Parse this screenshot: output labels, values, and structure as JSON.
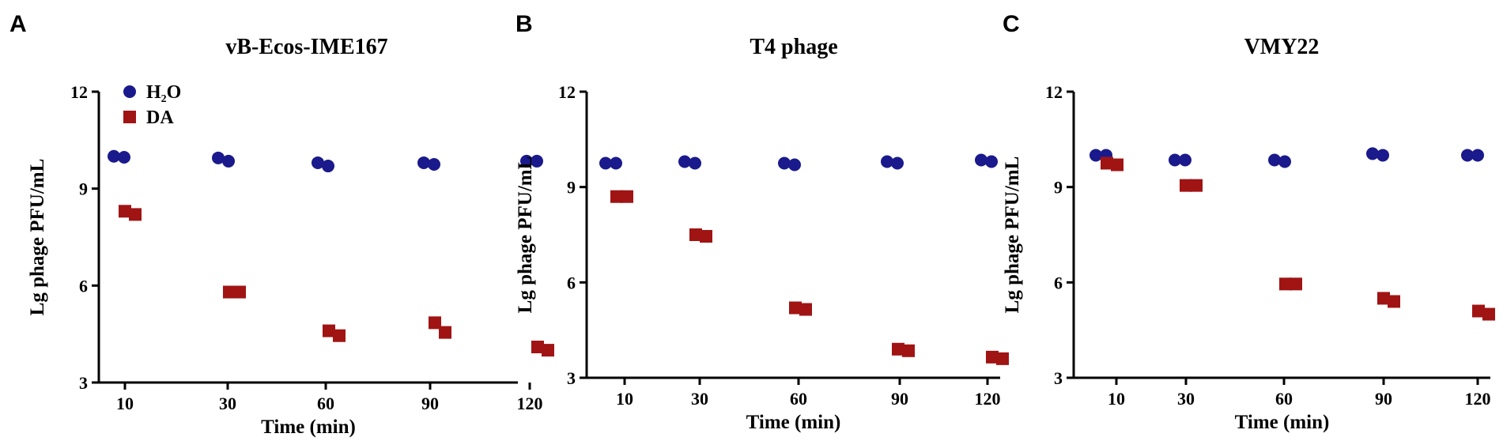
{
  "panels": [
    "A",
    "B",
    "C"
  ],
  "legend": {
    "h2o_text": "H",
    "h2o_sub": "2",
    "h2o_tail": "O",
    "da": "DA"
  },
  "colors": {
    "h2o": "#1a1a8c",
    "da": "#a01414"
  },
  "chart_data": [
    {
      "type": "scatter",
      "title": "vB-Ecos-IME167",
      "xlabel": "Time (min)",
      "ylabel": "Lg phage PFU/mL",
      "xticks": [
        "10",
        "30",
        "60",
        "90",
        "120"
      ],
      "yticks": [
        "3",
        "6",
        "9",
        "12"
      ],
      "ylim": [
        3,
        12
      ],
      "series": [
        {
          "name": "H2O",
          "marker": "circle",
          "points": [
            {
              "x": "10",
              "y": [
                10.0,
                9.97
              ]
            },
            {
              "x": "30",
              "y": [
                9.95,
                9.85
              ]
            },
            {
              "x": "60",
              "y": [
                9.8,
                9.7
              ]
            },
            {
              "x": "90",
              "y": [
                9.8,
                9.75
              ]
            },
            {
              "x": "120",
              "y": [
                9.85,
                9.85
              ]
            }
          ]
        },
        {
          "name": "DA",
          "marker": "square",
          "points": [
            {
              "x": "10",
              "y": [
                8.3,
                8.2
              ]
            },
            {
              "x": "30",
              "y": [
                5.8,
                5.8
              ]
            },
            {
              "x": "60",
              "y": [
                4.6,
                4.45
              ]
            },
            {
              "x": "90",
              "y": [
                4.85,
                4.55
              ]
            },
            {
              "x": "120",
              "y": [
                4.1,
                4.0
              ]
            }
          ]
        }
      ]
    },
    {
      "type": "scatter",
      "title": "T4 phage",
      "xlabel": "Time (min)",
      "ylabel": "Lg phage PFU/mL",
      "xticks": [
        "10",
        "30",
        "60",
        "90",
        "120"
      ],
      "yticks": [
        "3",
        "6",
        "9",
        "12"
      ],
      "ylim": [
        3,
        12
      ],
      "series": [
        {
          "name": "H2O",
          "marker": "circle",
          "points": [
            {
              "x": "10",
              "y": [
                9.75,
                9.75
              ]
            },
            {
              "x": "30",
              "y": [
                9.8,
                9.75
              ]
            },
            {
              "x": "60",
              "y": [
                9.75,
                9.7
              ]
            },
            {
              "x": "90",
              "y": [
                9.8,
                9.75
              ]
            },
            {
              "x": "120",
              "y": [
                9.85,
                9.8
              ]
            }
          ]
        },
        {
          "name": "DA",
          "marker": "square",
          "points": [
            {
              "x": "10",
              "y": [
                8.7,
                8.7
              ]
            },
            {
              "x": "30",
              "y": [
                7.5,
                7.45
              ]
            },
            {
              "x": "60",
              "y": [
                5.2,
                5.15
              ]
            },
            {
              "x": "90",
              "y": [
                3.9,
                3.85
              ]
            },
            {
              "x": "120",
              "y": [
                3.65,
                3.6
              ]
            }
          ]
        }
      ]
    },
    {
      "type": "scatter",
      "title": "VMY22",
      "xlabel": "Time (min)",
      "ylabel": "Lg phage PFU/mL",
      "xticks": [
        "10",
        "30",
        "60",
        "90",
        "120"
      ],
      "yticks": [
        "3",
        "6",
        "9",
        "12"
      ],
      "ylim": [
        3,
        12
      ],
      "series": [
        {
          "name": "H2O",
          "marker": "circle",
          "points": [
            {
              "x": "10",
              "y": [
                10.0,
                10.0
              ]
            },
            {
              "x": "30",
              "y": [
                9.85,
                9.85
              ]
            },
            {
              "x": "60",
              "y": [
                9.85,
                9.8
              ]
            },
            {
              "x": "90",
              "y": [
                10.05,
                10.0
              ]
            },
            {
              "x": "120",
              "y": [
                10.0,
                10.0
              ]
            }
          ]
        },
        {
          "name": "DA",
          "marker": "square",
          "points": [
            {
              "x": "10",
              "y": [
                9.75,
                9.7
              ]
            },
            {
              "x": "30",
              "y": [
                9.05,
                9.05
              ]
            },
            {
              "x": "60",
              "y": [
                5.95,
                5.95
              ]
            },
            {
              "x": "90",
              "y": [
                5.5,
                5.4
              ]
            },
            {
              "x": "120",
              "y": [
                5.1,
                5.0
              ]
            }
          ]
        }
      ]
    }
  ]
}
